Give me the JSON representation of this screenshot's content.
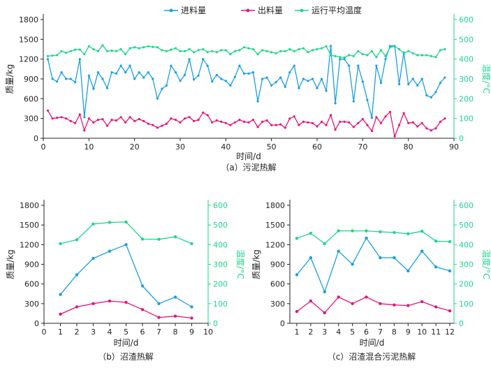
{
  "legend": {
    "feed": "进料量",
    "output": "出料量",
    "temp": "运行平均温度"
  },
  "colors": {
    "feed": "#1a9fe0",
    "output": "#e5157a",
    "temp": "#1fd48c",
    "axis": "#222222"
  },
  "chart_data": [
    {
      "type": "line",
      "caption": "（a）污泥热解",
      "xlabel": "时间/d",
      "ylabel": "质量/kg",
      "y2label": "温度/°C",
      "xlim": [
        0,
        90
      ],
      "ylim": [
        0,
        1800
      ],
      "y2lim": [
        0,
        600
      ],
      "xticks": [
        0,
        10,
        20,
        30,
        40,
        50,
        60,
        70,
        80,
        90
      ],
      "yticks": [
        0,
        300,
        600,
        900,
        1200,
        1500,
        1800
      ],
      "y2ticks": [
        0,
        100,
        200,
        300,
        400,
        500,
        600
      ],
      "grid": false,
      "legend_position": "top",
      "x": [
        1,
        2,
        3,
        4,
        5,
        6,
        7,
        8,
        9,
        10,
        11,
        12,
        13,
        14,
        15,
        16,
        17,
        18,
        19,
        20,
        21,
        22,
        23,
        24,
        25,
        26,
        27,
        28,
        29,
        30,
        31,
        32,
        33,
        34,
        35,
        36,
        37,
        38,
        39,
        40,
        41,
        42,
        43,
        44,
        45,
        46,
        47,
        48,
        49,
        50,
        51,
        52,
        53,
        54,
        55,
        56,
        57,
        58,
        59,
        60,
        61,
        62,
        63,
        64,
        65,
        66,
        67,
        68,
        69,
        70,
        71,
        72,
        73,
        74,
        75,
        76,
        77,
        78,
        79,
        80,
        81,
        82,
        83,
        84,
        85,
        86,
        87,
        88
      ],
      "series": [
        {
          "name": "进料量",
          "axis": "left",
          "values": [
            1200,
            900,
            860,
            1000,
            900,
            900,
            850,
            1200,
            320,
            950,
            750,
            1000,
            900,
            760,
            1000,
            980,
            1100,
            1000,
            1100,
            900,
            1000,
            920,
            1000,
            900,
            600,
            750,
            800,
            1100,
            1000,
            870,
            960,
            1200,
            890,
            950,
            1200,
            1100,
            860,
            960,
            900,
            870,
            800,
            930,
            1100,
            980,
            980,
            1000,
            560,
            900,
            920,
            800,
            850,
            920,
            780,
            1000,
            1100,
            760,
            900,
            870,
            900,
            760,
            900,
            720,
            1400,
            530,
            1200,
            1200,
            1100,
            560,
            1100,
            860,
            580,
            310,
            1100,
            840,
            1200,
            1400,
            1400,
            820,
            1300,
            820,
            900,
            800,
            900,
            650,
            620,
            700,
            840,
            920
          ]
        },
        {
          "name": "出料量",
          "axis": "left",
          "values": [
            420,
            300,
            310,
            320,
            300,
            260,
            230,
            360,
            120,
            300,
            240,
            280,
            290,
            190,
            280,
            270,
            320,
            240,
            320,
            260,
            290,
            260,
            220,
            200,
            160,
            190,
            220,
            300,
            280,
            240,
            300,
            320,
            260,
            280,
            390,
            350,
            240,
            270,
            250,
            230,
            200,
            240,
            280,
            250,
            240,
            280,
            170,
            250,
            270,
            200,
            200,
            210,
            160,
            300,
            330,
            200,
            250,
            240,
            230,
            180,
            250,
            200,
            350,
            130,
            250,
            250,
            240,
            170,
            230,
            290,
            200,
            110,
            320,
            230,
            330,
            400,
            30,
            200,
            380,
            230,
            240,
            180,
            230,
            150,
            120,
            150,
            250,
            300
          ]
        },
        {
          "name": "运行平均温度",
          "axis": "right",
          "values": [
            415,
            418,
            420,
            440,
            432,
            440,
            448,
            448,
            425,
            465,
            450,
            440,
            470,
            440,
            443,
            440,
            450,
            425,
            455,
            460,
            455,
            460,
            465,
            462,
            460,
            445,
            440,
            448,
            455,
            440,
            440,
            450,
            435,
            445,
            450,
            435,
            440,
            435,
            445,
            445,
            425,
            440,
            445,
            460,
            455,
            450,
            425,
            445,
            440,
            435,
            430,
            440,
            440,
            450,
            440,
            450,
            455,
            435,
            445,
            450,
            455,
            465,
            420,
            415,
            410,
            408,
            420,
            415,
            440,
            425,
            420,
            440,
            410,
            445,
            415,
            460,
            465,
            450,
            430,
            440,
            430,
            420,
            420,
            420,
            415,
            410,
            445,
            450
          ]
        }
      ]
    },
    {
      "type": "line",
      "caption": "（b）沼渣热解",
      "xlabel": "时间/d",
      "ylabel": "质量/kg",
      "y2label": "温度/°C",
      "xlim": [
        0,
        10
      ],
      "ylim": [
        0,
        1800
      ],
      "y2lim": [
        0,
        600
      ],
      "xticks": [
        0,
        1,
        2,
        3,
        4,
        5,
        6,
        7,
        8,
        9,
        10
      ],
      "yticks": [
        0,
        300,
        600,
        900,
        1200,
        1500,
        1800
      ],
      "y2ticks": [
        0,
        100,
        200,
        300,
        400,
        500,
        600
      ],
      "grid": false,
      "x": [
        1,
        2,
        3,
        4,
        5,
        6,
        7,
        8,
        9
      ],
      "series": [
        {
          "name": "进料量",
          "axis": "left",
          "values": [
            440,
            740,
            990,
            1100,
            1200,
            570,
            300,
            400,
            250
          ]
        },
        {
          "name": "出料量",
          "axis": "left",
          "values": [
            140,
            250,
            300,
            340,
            320,
            210,
            90,
            110,
            80
          ]
        },
        {
          "name": "运行平均温度",
          "axis": "right",
          "values": [
            405,
            425,
            505,
            513,
            515,
            428,
            427,
            440,
            405
          ]
        }
      ]
    },
    {
      "type": "line",
      "caption": "（c）沼渣混合污泥热解",
      "xlabel": "时间/d",
      "ylabel": "质量/kg",
      "y2label": "温度/°C",
      "xlim": [
        0.5,
        12.3
      ],
      "ylim": [
        0,
        1800
      ],
      "y2lim": [
        0,
        600
      ],
      "xticks": [
        1,
        2,
        3,
        4,
        5,
        6,
        7,
        8,
        9,
        10,
        11,
        12
      ],
      "yticks": [
        0,
        300,
        600,
        900,
        1200,
        1500,
        1800
      ],
      "y2ticks": [
        0,
        100,
        200,
        300,
        400,
        500,
        600
      ],
      "grid": false,
      "x": [
        1,
        2,
        3,
        4,
        5,
        6,
        7,
        8,
        9,
        10,
        11,
        12
      ],
      "series": [
        {
          "name": "进料量",
          "axis": "left",
          "values": [
            740,
            1000,
            480,
            1100,
            900,
            1300,
            1000,
            1000,
            800,
            1100,
            860,
            800
          ]
        },
        {
          "name": "出料量",
          "axis": "left",
          "values": [
            180,
            340,
            160,
            400,
            300,
            400,
            300,
            280,
            270,
            330,
            250,
            190
          ]
        },
        {
          "name": "运行平均温度",
          "axis": "right",
          "values": [
            432,
            458,
            405,
            470,
            470,
            470,
            465,
            462,
            455,
            468,
            418,
            415
          ]
        }
      ]
    }
  ]
}
